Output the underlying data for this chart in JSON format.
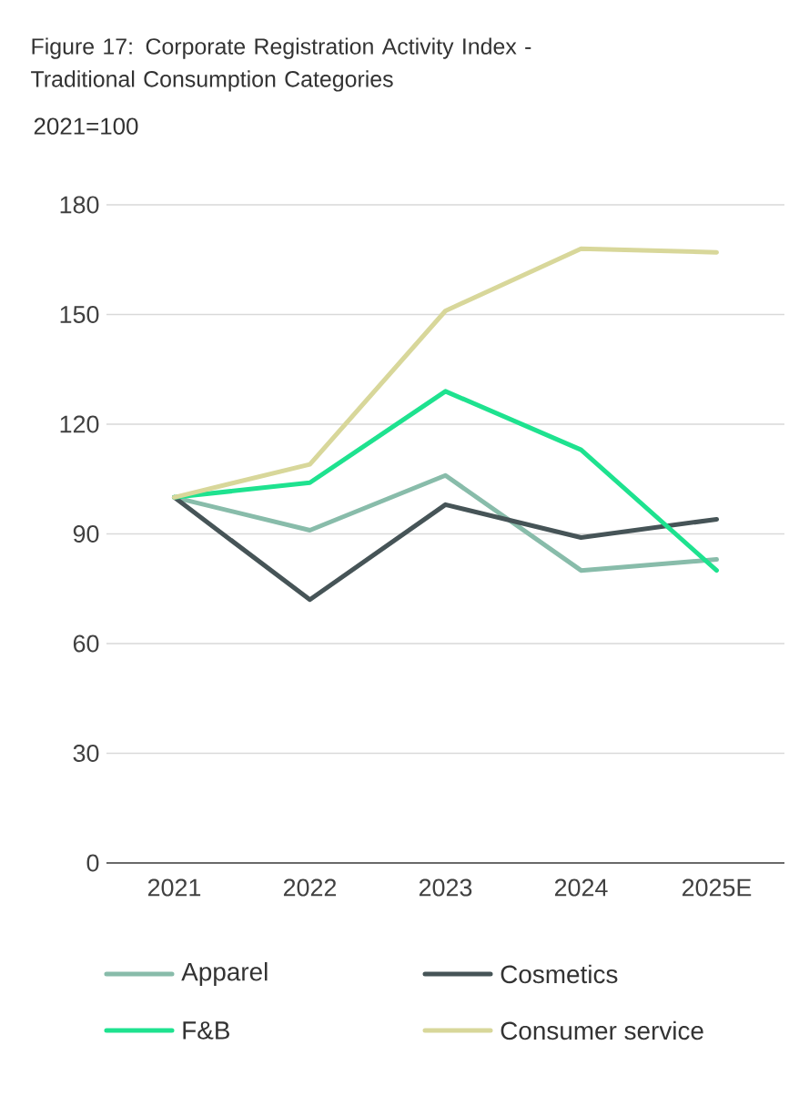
{
  "chart_data": {
    "type": "line",
    "title": "Figure 17: Corporate Registration Activity Index - Traditional Consumption Categories",
    "subtitle": "2021=100",
    "categories": [
      "2021",
      "2022",
      "2023",
      "2024",
      "2025E"
    ],
    "series": [
      {
        "name": "Apparel",
        "color": "#88bcaa",
        "values": [
          100,
          91,
          106,
          80,
          83
        ]
      },
      {
        "name": "Cosmetics",
        "color": "#465457",
        "values": [
          100,
          72,
          98,
          89,
          94
        ]
      },
      {
        "name": "F&B",
        "color": "#1ee28f",
        "values": [
          100,
          104,
          129,
          113,
          80
        ]
      },
      {
        "name": "Consumer service",
        "color": "#d8d79a",
        "values": [
          100,
          109,
          151,
          168,
          167
        ]
      }
    ],
    "ylim": [
      0,
      180
    ],
    "yticks": [
      0,
      30,
      60,
      90,
      120,
      150,
      180
    ],
    "grid": "y",
    "legend": "bottom",
    "marker": "none",
    "line_style": "solid"
  }
}
